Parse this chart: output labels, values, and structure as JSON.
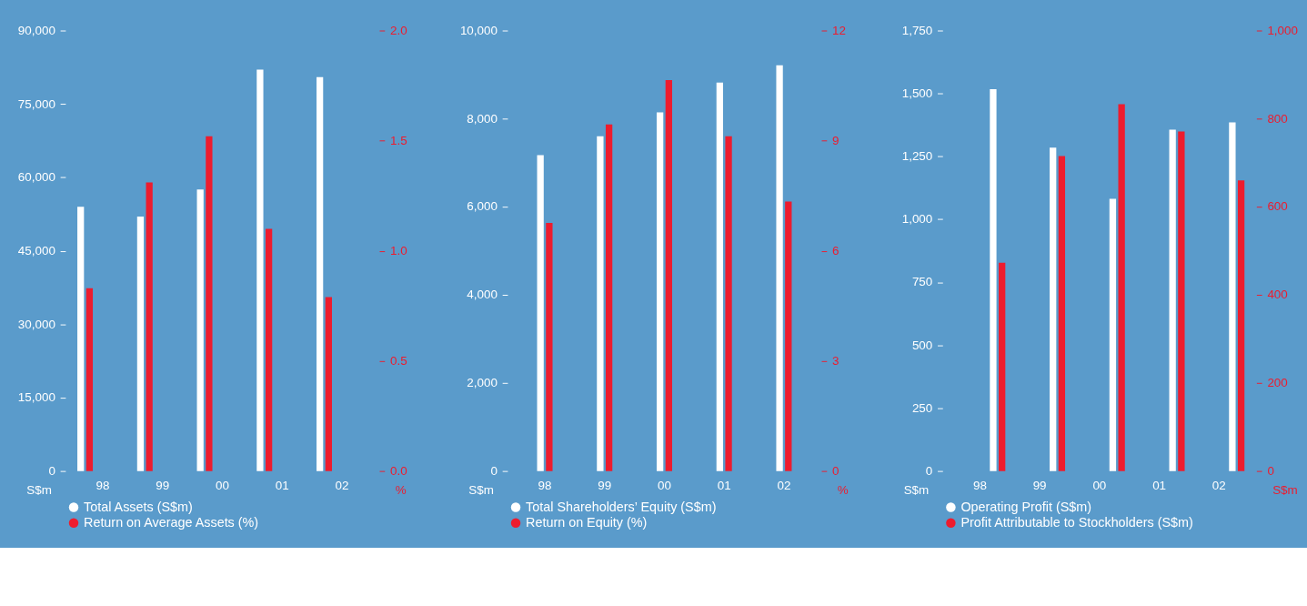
{
  "chart_data": [
    {
      "type": "bar",
      "categories": [
        "98",
        "99",
        "00",
        "01",
        "02"
      ],
      "ylabel": "S$m",
      "y2label": "%",
      "legend": "bottom",
      "grid": false,
      "series": [
        {
          "name": "Total Assets (S$m)",
          "color": "#ffffff",
          "values": [
            54000,
            52000,
            57500,
            82000,
            80500
          ]
        },
        {
          "name": "Return on Average Assets (%)",
          "color": "#ed1c2e",
          "axis": "y2",
          "values": [
            0.83,
            1.31,
            1.52,
            1.1,
            0.79
          ]
        }
      ],
      "ylim": [
        0,
        90000
      ],
      "yticks": [
        {
          "value": 0,
          "label": "0"
        },
        {
          "value": 15000,
          "label": "15,000"
        },
        {
          "value": 30000,
          "label": "30,000"
        },
        {
          "value": 45000,
          "label": "45,000"
        },
        {
          "value": 60000,
          "label": "60,000"
        },
        {
          "value": 75000,
          "label": "75,000"
        },
        {
          "value": 90000,
          "label": "90,000"
        }
      ],
      "y2lim": [
        0,
        2.0
      ],
      "y2ticks": [
        {
          "value": 0,
          "label": "0.0"
        },
        0.5,
        {
          "value": 1,
          "label": "1.0"
        },
        1.5,
        {
          "value": 2,
          "label": "2.0"
        }
      ]
    },
    {
      "type": "bar",
      "categories": [
        "98",
        "99",
        "00",
        "01",
        "02"
      ],
      "ylabel": "S$m",
      "y2label": "%",
      "legend": "bottom",
      "grid": false,
      "series": [
        {
          "name": "Total Shareholders’ Equity (S$m)",
          "color": "#ffffff",
          "values": [
            7170,
            7600,
            8140,
            8820,
            9210
          ]
        },
        {
          "name": "Return on Equity (%)",
          "color": "#ed1c2e",
          "axis": "y2",
          "values": [
            6.76,
            9.44,
            10.65,
            9.12,
            7.34
          ]
        }
      ],
      "ylim": [
        0,
        10000
      ],
      "yticks": [
        0,
        {
          "value": 2000,
          "label": "2,000"
        },
        {
          "value": 4000,
          "label": "4,000"
        },
        {
          "value": 6000,
          "label": "6,000"
        },
        {
          "value": 8000,
          "label": "8,000"
        },
        {
          "value": 10000,
          "label": "10,000"
        }
      ],
      "y2lim": [
        0,
        12
      ],
      "y2ticks": [
        0,
        3,
        6,
        9,
        12
      ]
    },
    {
      "type": "bar",
      "categories": [
        "98",
        "99",
        "00",
        "01",
        "02"
      ],
      "ylabel": "S$m",
      "y2label": "S$m",
      "legend": "bottom",
      "grid": false,
      "series": [
        {
          "name": "Operating Profit (S$m)",
          "color": "#ffffff",
          "values": [
            1517,
            1285,
            1081,
            1356,
            1385
          ]
        },
        {
          "name": "Profit Attributable to Stockholders (S$m)",
          "color": "#ed1c2e",
          "axis": "y2",
          "values": [
            473,
            715,
            833,
            771,
            660
          ]
        }
      ],
      "ylim": [
        0,
        1750
      ],
      "yticks": [
        0,
        250,
        500,
        750,
        {
          "value": 1000,
          "label": "1,000"
        },
        {
          "value": 1250,
          "label": "1,250"
        },
        {
          "value": 1500,
          "label": "1,500"
        },
        {
          "value": 1750,
          "label": "1,750"
        }
      ],
      "y2lim": [
        0,
        1000
      ],
      "y2ticks": [
        0,
        200,
        400,
        600,
        800,
        {
          "value": 1000,
          "label": "1,000"
        }
      ]
    }
  ]
}
